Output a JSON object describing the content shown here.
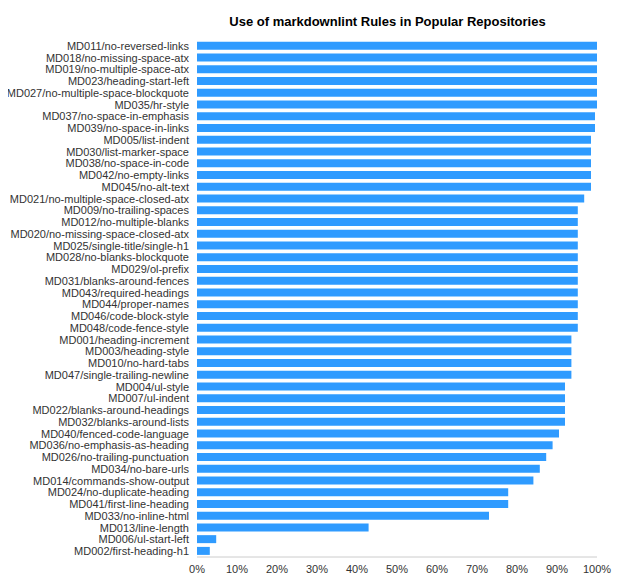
{
  "chart_data": {
    "type": "bar",
    "title": "Use of markdownlint Rules in Popular Repositories",
    "orientation": "horizontal",
    "categories": [
      "MD011/no-reversed-links",
      "MD018/no-missing-space-atx",
      "MD019/no-multiple-space-atx",
      "MD023/heading-start-left",
      "MD027/no-multiple-space-blockquote",
      "MD035/hr-style",
      "MD037/no-space-in-emphasis",
      "MD039/no-space-in-links",
      "MD005/list-indent",
      "MD030/list-marker-space",
      "MD038/no-space-in-code",
      "MD042/no-empty-links",
      "MD045/no-alt-text",
      "MD021/no-multiple-space-closed-atx",
      "MD009/no-trailing-spaces",
      "MD012/no-multiple-blanks",
      "MD020/no-missing-space-closed-atx",
      "MD025/single-title/single-h1",
      "MD028/no-blanks-blockquote",
      "MD029/ol-prefix",
      "MD031/blanks-around-fences",
      "MD043/required-headings",
      "MD044/proper-names",
      "MD046/code-block-style",
      "MD048/code-fence-style",
      "MD001/heading-increment",
      "MD003/heading-style",
      "MD010/no-hard-tabs",
      "MD047/single-trailing-newline",
      "MD004/ul-style",
      "MD007/ul-indent",
      "MD022/blanks-around-headings",
      "MD032/blanks-around-lists",
      "MD040/fenced-code-language",
      "MD036/no-emphasis-as-heading",
      "MD026/no-trailing-punctuation",
      "MD034/no-bare-urls",
      "MD014/commands-show-output",
      "MD024/no-duplicate-heading",
      "MD041/first-line-heading",
      "MD033/no-inline-html",
      "MD013/line-length",
      "MD006/ul-start-left",
      "MD002/first-heading-h1"
    ],
    "values": [
      100,
      100,
      100,
      100,
      100,
      100,
      99.5,
      99.5,
      98.5,
      98.5,
      98.5,
      98.5,
      98.5,
      96.8,
      95.2,
      95.2,
      95.2,
      95.2,
      95.2,
      95.2,
      95.2,
      95.2,
      95.2,
      95.2,
      95.2,
      93.6,
      93.6,
      93.6,
      93.6,
      92,
      92,
      92,
      92,
      90.5,
      88.9,
      87.3,
      85.7,
      84.1,
      77.8,
      77.8,
      73,
      42.9,
      4.8,
      3.2
    ],
    "color": "#2f9bff",
    "xlim": [
      0,
      100
    ],
    "xticks": [
      {
        "value": 0,
        "label": "0%"
      },
      {
        "value": 10,
        "label": "10%"
      },
      {
        "value": 20,
        "label": "20%"
      },
      {
        "value": 30,
        "label": "30%"
      },
      {
        "value": 40,
        "label": "40%"
      },
      {
        "value": 50,
        "label": "50%"
      },
      {
        "value": 60,
        "label": "60%"
      },
      {
        "value": 70,
        "label": "70%"
      },
      {
        "value": 80,
        "label": "80%"
      },
      {
        "value": 90,
        "label": "90%"
      },
      {
        "value": 100,
        "label": "100%"
      }
    ],
    "grid": false
  }
}
